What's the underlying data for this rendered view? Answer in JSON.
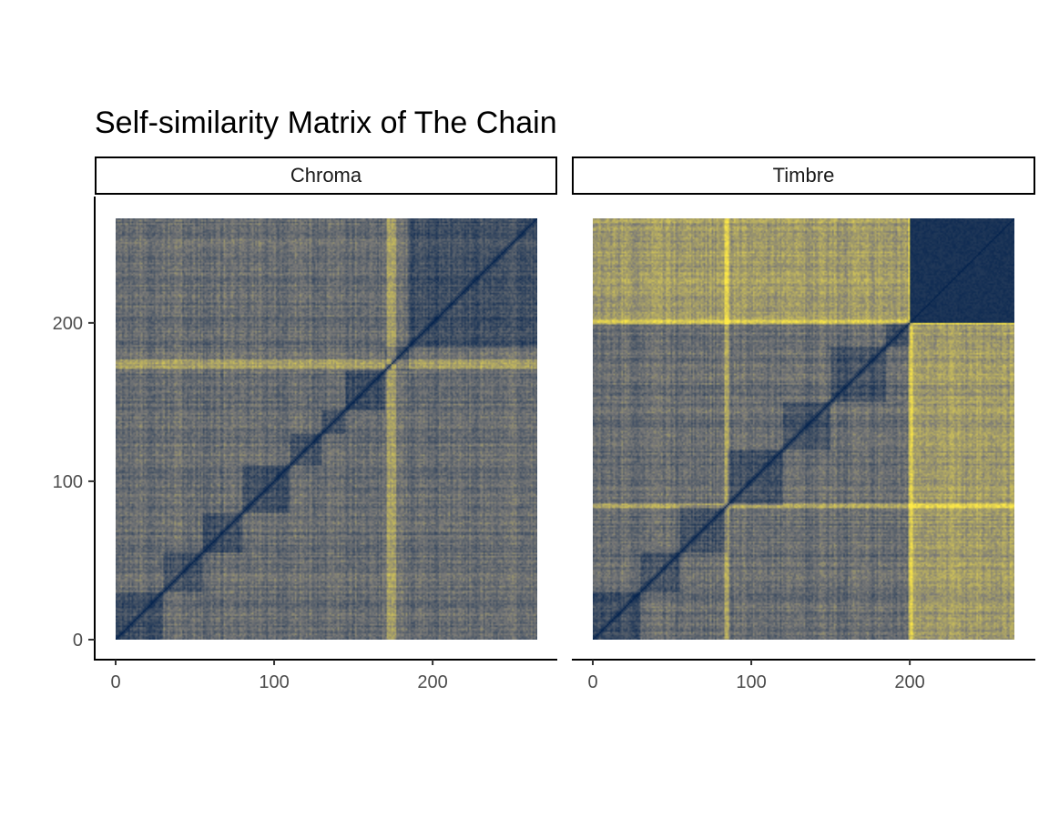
{
  "chart_data": {
    "type": "heatmap",
    "title": "Self-similarity Matrix of The Chain",
    "x_ticks": [
      0,
      100,
      200
    ],
    "y_ticks": [
      0,
      100,
      200
    ],
    "xlim": [
      0,
      266
    ],
    "ylim": [
      0,
      266
    ],
    "n": 266,
    "colors": {
      "low": "#00204d",
      "mid": "#7c7b78",
      "high": "#ffea46",
      "axis": "#000000",
      "tick_label": "#4d4d4d"
    },
    "panels": [
      {
        "label": "Chroma",
        "section_boundaries": [
          30,
          55,
          80,
          110,
          130,
          145,
          170,
          185,
          266
        ],
        "bright_bands": [
          172,
          175
        ],
        "notes": "distance matrix of chroma features; dark diagonal"
      },
      {
        "label": "Timbre",
        "section_boundaries": [
          30,
          55,
          85,
          120,
          150,
          185,
          200,
          266
        ],
        "bright_bands": [
          84,
          200
        ],
        "notes": "distance matrix of timbre features; dark block 200-266"
      }
    ]
  }
}
